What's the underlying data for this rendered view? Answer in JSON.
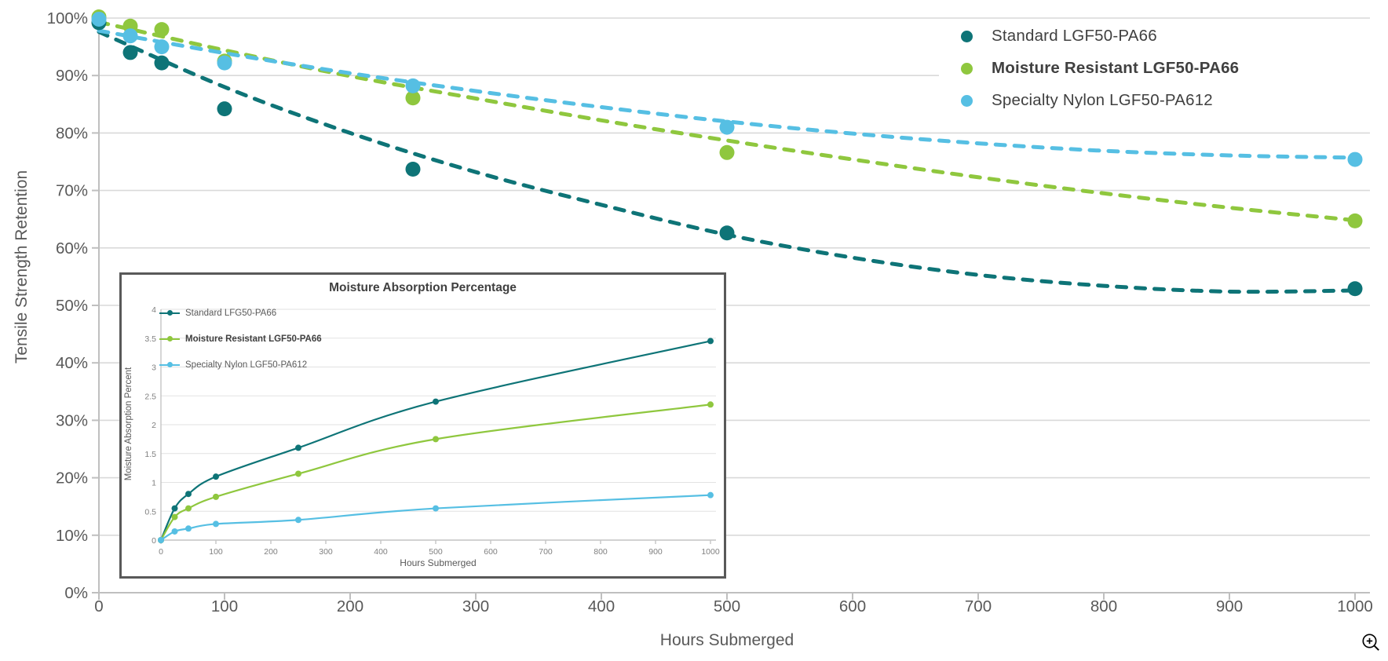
{
  "colors": {
    "teal": "#0e7477",
    "green": "#8fc73e",
    "blue": "#56bfe3",
    "gridline": "#d9d9d9",
    "axis_line": "#bfbfbf",
    "tick_text": "#595959",
    "axis_title_text": "#595959",
    "legend_text": "#404040",
    "inset_border": "#595959",
    "inset_tick_text": "#808080",
    "zoom_icon": "#000000"
  },
  "chart_data": {
    "main": {
      "type": "scatter",
      "title": "",
      "xlabel": "Hours Submerged",
      "ylabel": "Tensile Strength Retention",
      "xlim": [
        0,
        1000
      ],
      "ylim": [
        0,
        100
      ],
      "x_ticks": [
        0,
        100,
        200,
        300,
        400,
        500,
        600,
        700,
        800,
        900,
        1000
      ],
      "y_ticks_percent": [
        0,
        10,
        20,
        30,
        40,
        50,
        60,
        70,
        80,
        90,
        100
      ],
      "grid": "horizontal",
      "legend_position": "top-right",
      "marker_style": "filled-circle",
      "trend_style": "dashed",
      "series": [
        {
          "name": "Standard LGF50-PA66",
          "color": "#0e7477",
          "bold": false,
          "points": [
            [
              0,
              99.2
            ],
            [
              25,
              94.0
            ],
            [
              50,
              92.2
            ],
            [
              100,
              84.2
            ],
            [
              250,
              73.7
            ],
            [
              500,
              62.6
            ],
            [
              1000,
              52.9
            ]
          ],
          "trend": [
            [
              0,
              97.6
            ],
            [
              100,
              88.0
            ],
            [
              200,
              80.0
            ],
            [
              300,
              73.2
            ],
            [
              400,
              67.5
            ],
            [
              500,
              62.3
            ],
            [
              600,
              58.3
            ],
            [
              700,
              55.3
            ],
            [
              800,
              53.4
            ],
            [
              900,
              52.4
            ],
            [
              1000,
              52.6
            ]
          ]
        },
        {
          "name": "Moisture Resistant LGF50-PA66",
          "color": "#8fc73e",
          "bold": true,
          "points": [
            [
              0,
              100.2
            ],
            [
              25,
              98.6
            ],
            [
              50,
              98.0
            ],
            [
              100,
              92.5
            ],
            [
              250,
              86.1
            ],
            [
              500,
              76.6
            ],
            [
              1000,
              64.7
            ]
          ],
          "trend": [
            [
              0,
              99.3
            ],
            [
              100,
              94.4
            ],
            [
              200,
              89.9
            ],
            [
              300,
              86.0
            ],
            [
              400,
              82.2
            ],
            [
              500,
              78.7
            ],
            [
              600,
              75.4
            ],
            [
              700,
              72.3
            ],
            [
              800,
              69.5
            ],
            [
              900,
              67.0
            ],
            [
              1000,
              64.8
            ]
          ]
        },
        {
          "name": "Specialty Nylon LGF50-PA612",
          "color": "#56bfe3",
          "bold": false,
          "points": [
            [
              0,
              99.8
            ],
            [
              25,
              96.9
            ],
            [
              50,
              95.0
            ],
            [
              100,
              92.2
            ],
            [
              250,
              88.2
            ],
            [
              500,
              81.0
            ],
            [
              1000,
              75.4
            ]
          ],
          "trend": [
            [
              0,
              97.8
            ],
            [
              100,
              93.9
            ],
            [
              200,
              90.4
            ],
            [
              300,
              87.3
            ],
            [
              400,
              84.5
            ],
            [
              500,
              82.0
            ],
            [
              600,
              79.9
            ],
            [
              700,
              78.2
            ],
            [
              800,
              76.9
            ],
            [
              900,
              76.1
            ],
            [
              1000,
              75.7
            ]
          ]
        }
      ]
    },
    "inset": {
      "type": "line",
      "title": "Moisture Absorption Percentage",
      "xlabel": "Hours Submerged",
      "ylabel": "Moisture Absorption Percent",
      "xlim": [
        0,
        1000
      ],
      "ylim": [
        0,
        4
      ],
      "x_ticks": [
        0,
        100,
        200,
        300,
        400,
        500,
        600,
        700,
        800,
        900,
        1000
      ],
      "y_ticks": [
        0,
        0.5,
        1,
        1.5,
        2,
        2.5,
        3,
        3.5,
        4
      ],
      "grid": "horizontal",
      "legend_position": "top-left",
      "marker_style": "small-dot",
      "series": [
        {
          "name": "Standard LFG50-PA66",
          "color": "#0e7477",
          "bold": false,
          "points": [
            [
              0,
              0
            ],
            [
              25,
              0.55
            ],
            [
              50,
              0.8
            ],
            [
              100,
              1.1
            ],
            [
              250,
              1.6
            ],
            [
              500,
              2.4
            ],
            [
              1000,
              3.45
            ]
          ]
        },
        {
          "name": "Moisture Resistant LGF50-PA66",
          "color": "#8fc73e",
          "bold": true,
          "points": [
            [
              0,
              0
            ],
            [
              25,
              0.4
            ],
            [
              50,
              0.55
            ],
            [
              100,
              0.75
            ],
            [
              250,
              1.15
            ],
            [
              500,
              1.75
            ],
            [
              1000,
              2.35
            ]
          ]
        },
        {
          "name": "Specialty Nylon LGF50-PA612",
          "color": "#56bfe3",
          "bold": false,
          "points": [
            [
              0,
              0
            ],
            [
              25,
              0.15
            ],
            [
              50,
              0.2
            ],
            [
              100,
              0.28
            ],
            [
              250,
              0.35
            ],
            [
              500,
              0.55
            ],
            [
              1000,
              0.78
            ]
          ]
        }
      ]
    }
  },
  "controls": {
    "zoom_in_label": "zoom in"
  }
}
